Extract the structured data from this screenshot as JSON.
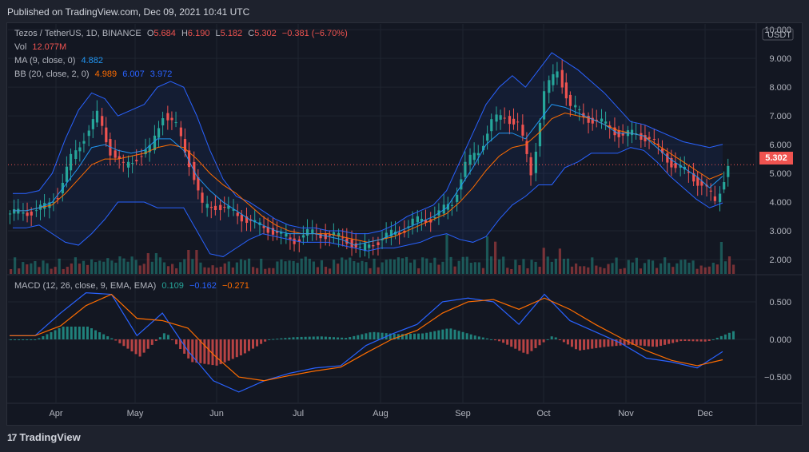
{
  "header": {
    "published": "Published on TradingView.com, Dec 09, 2021 10:41 UTC"
  },
  "legend": {
    "symbol": "Tezos / TetherUS, 1D, BINANCE",
    "ohlc": {
      "o_label": "O",
      "o": "5.684",
      "h_label": "H",
      "h": "6.190",
      "l_label": "L",
      "l": "5.182",
      "c_label": "C",
      "c": "5.302",
      "change": "−0.381 (−6.70%)"
    },
    "vol_label": "Vol",
    "vol": "12.077M",
    "ma_label": "MA (9, close, 0)",
    "ma": "4.882",
    "bb_label": "BB (20, close, 2, 0)",
    "bb_basis": "4.989",
    "bb_upper": "6.007",
    "bb_lower": "3.972",
    "macd_label": "MACD (12, 26, close, 9, EMA, EMA)",
    "macd_hist": "0.109",
    "macd_line": "−0.162",
    "macd_signal": "−0.271"
  },
  "price_axis": {
    "currency": "USDT",
    "ticks": [
      "10.000",
      "9.000",
      "8.000",
      "7.000",
      "6.000",
      "5.000",
      "4.000",
      "3.000",
      "2.000"
    ],
    "last_price": "5.302"
  },
  "macd_axis": {
    "ticks": [
      "0.500",
      "0.000",
      "−0.500"
    ]
  },
  "time_axis": {
    "ticks": [
      "Apr",
      "May",
      "Jun",
      "Jul",
      "Aug",
      "Sep",
      "Oct",
      "Nov",
      "Dec"
    ]
  },
  "footer": {
    "brand": "TradingView",
    "logo": "17"
  },
  "colors": {
    "up": "#26a69a",
    "down": "#ef5350",
    "ma": "#2196f3",
    "bb": "#2962ff",
    "macd": "#2962ff",
    "signal": "#ff6d00",
    "bb_basis": "#ff6d00"
  },
  "chart_data": [
    {
      "type": "candlestick",
      "title": "Tezos / TetherUS, 1D, BINANCE",
      "ylim": [
        1.5,
        10.2
      ],
      "x": [
        "Mar 20",
        "Mar 25",
        "Mar 30",
        "Apr 1",
        "Apr 5",
        "Apr 10",
        "Apr 15",
        "Apr 20",
        "Apr 25",
        "Apr 30",
        "May 1",
        "May 5",
        "May 10",
        "May 15",
        "May 20",
        "May 25",
        "May 31",
        "Jun 5",
        "Jun 10",
        "Jun 15",
        "Jun 20",
        "Jun 25",
        "Jun 30",
        "Jul 5",
        "Jul 10",
        "Jul 15",
        "Jul 20",
        "Jul 25",
        "Jul 31",
        "Aug 5",
        "Aug 10",
        "Aug 15",
        "Aug 20",
        "Aug 25",
        "Aug 31",
        "Sep 5",
        "Sep 10",
        "Sep 15",
        "Sep 20",
        "Sep 25",
        "Sep 30",
        "Oct 5",
        "Oct 10",
        "Oct 15",
        "Oct 20",
        "Oct 25",
        "Oct 31",
        "Nov 5",
        "Nov 10",
        "Nov 15",
        "Nov 20",
        "Nov 25",
        "Nov 30",
        "Dec 4",
        "Dec 9"
      ],
      "close": [
        3.6,
        3.7,
        3.8,
        4.3,
        5.5,
        6.3,
        7.0,
        5.8,
        5.2,
        5.6,
        5.8,
        7.1,
        6.6,
        5.4,
        3.8,
        3.9,
        3.7,
        3.5,
        3.2,
        3.1,
        2.8,
        2.7,
        2.9,
        2.9,
        2.8,
        2.7,
        2.3,
        2.6,
        2.8,
        3.0,
        3.3,
        3.4,
        3.6,
        4.0,
        5.3,
        5.8,
        6.8,
        7.0,
        6.7,
        5.0,
        7.8,
        8.6,
        7.3,
        7.0,
        6.8,
        6.6,
        6.3,
        6.4,
        6.2,
        5.7,
        5.2,
        5.0,
        4.6,
        4.0,
        5.3
      ],
      "series": [
        {
          "name": "MA (9, close, 0)",
          "values": [
            3.7,
            3.7,
            3.8,
            4.0,
            4.6,
            5.2,
            5.9,
            6.0,
            5.8,
            5.7,
            5.8,
            6.2,
            6.2,
            5.8,
            4.9,
            4.4,
            4.0,
            3.7,
            3.4,
            3.2,
            3.0,
            2.9,
            2.9,
            2.9,
            2.8,
            2.7,
            2.5,
            2.6,
            2.7,
            2.9,
            3.1,
            3.3,
            3.5,
            3.8,
            4.5,
            5.2,
            6.0,
            6.4,
            6.4,
            6.2,
            6.8,
            7.4,
            7.3,
            7.1,
            6.9,
            6.7,
            6.4,
            6.4,
            6.3,
            5.9,
            5.5,
            5.2,
            4.9,
            4.5,
            4.9
          ]
        },
        {
          "name": "BB (20, close, 2, 0) basis",
          "values": [
            3.7,
            3.7,
            3.8,
            3.9,
            4.3,
            4.8,
            5.3,
            5.5,
            5.5,
            5.6,
            5.7,
            5.9,
            6.0,
            5.9,
            5.5,
            5.0,
            4.6,
            4.3,
            3.9,
            3.5,
            3.2,
            3.0,
            2.9,
            2.9,
            2.9,
            2.8,
            2.7,
            2.6,
            2.7,
            2.8,
            3.0,
            3.2,
            3.4,
            3.6,
            4.0,
            4.5,
            5.1,
            5.6,
            5.9,
            6.0,
            6.4,
            6.9,
            7.1,
            7.0,
            6.9,
            6.7,
            6.5,
            6.4,
            6.3,
            6.0,
            5.7,
            5.4,
            5.1,
            4.8,
            4.99
          ]
        },
        {
          "name": "BB upper",
          "values": [
            4.3,
            4.3,
            4.4,
            5.0,
            6.2,
            7.2,
            7.8,
            7.6,
            7.0,
            7.2,
            7.4,
            8.0,
            8.2,
            8.0,
            7.0,
            5.8,
            4.8,
            4.2,
            4.0,
            3.7,
            3.4,
            3.2,
            3.1,
            3.1,
            3.0,
            3.0,
            2.9,
            2.9,
            3.0,
            3.2,
            3.5,
            3.7,
            3.9,
            4.4,
            5.4,
            6.4,
            7.4,
            8.0,
            8.4,
            8.0,
            8.6,
            9.2,
            8.9,
            8.6,
            8.2,
            7.8,
            7.3,
            6.8,
            6.7,
            6.5,
            6.3,
            6.1,
            6.0,
            5.9,
            6.01
          ]
        },
        {
          "name": "BB lower",
          "values": [
            3.1,
            3.1,
            3.2,
            2.9,
            2.6,
            2.5,
            2.9,
            3.4,
            4.0,
            4.0,
            4.0,
            3.8,
            3.8,
            3.8,
            3.0,
            2.2,
            2.1,
            2.4,
            2.7,
            2.9,
            2.8,
            2.7,
            2.6,
            2.6,
            2.6,
            2.5,
            2.4,
            2.3,
            2.4,
            2.4,
            2.5,
            2.6,
            2.8,
            2.9,
            2.7,
            2.6,
            2.8,
            3.4,
            3.9,
            4.2,
            4.6,
            4.6,
            5.2,
            5.4,
            5.7,
            5.7,
            5.7,
            5.9,
            5.8,
            5.4,
            4.9,
            4.5,
            4.1,
            3.8,
            3.97
          ]
        }
      ]
    },
    {
      "type": "bar",
      "title": "Vol",
      "x": [
        "Mar 20",
        "Apr 15",
        "May 10",
        "May 20",
        "Jul 20",
        "Sep 5",
        "Sep 15",
        "Sep 30",
        "Oct 5",
        "Nov 30",
        "Dec 9"
      ],
      "values": [
        0.3,
        0.5,
        0.6,
        0.6,
        0.3,
        0.7,
        0.9,
        0.7,
        0.8,
        0.5,
        1.0
      ]
    },
    {
      "type": "line",
      "title": "MACD (12, 26, close, 9, EMA, EMA)",
      "ylim": [
        -0.85,
        0.85
      ],
      "x": [
        "Mar 20",
        "Mar 30",
        "Apr 10",
        "Apr 20",
        "Apr 25",
        "May 1",
        "May 10",
        "May 20",
        "May 25",
        "Jun 1",
        "Jun 10",
        "Jun 20",
        "Jul 1",
        "Jul 15",
        "Aug 1",
        "Aug 15",
        "Sep 1",
        "Sep 5",
        "Sep 15",
        "Sep 20",
        "Sep 25",
        "Oct 1",
        "Oct 10",
        "Oct 20",
        "Nov 1",
        "Nov 15",
        "Nov 25",
        "Dec 1",
        "Dec 9"
      ],
      "series": [
        {
          "name": "MACD",
          "values": [
            0.05,
            0.05,
            0.35,
            0.62,
            0.6,
            0.05,
            0.35,
            -0.15,
            -0.55,
            -0.7,
            -0.55,
            -0.45,
            -0.38,
            -0.35,
            -0.08,
            0.07,
            0.2,
            0.5,
            0.55,
            0.5,
            0.2,
            0.6,
            0.25,
            0.1,
            -0.05,
            -0.25,
            -0.3,
            -0.38,
            -0.162
          ]
        },
        {
          "name": "Signal",
          "values": [
            0.05,
            0.05,
            0.18,
            0.45,
            0.6,
            0.28,
            0.25,
            0.15,
            -0.2,
            -0.5,
            -0.55,
            -0.48,
            -0.42,
            -0.37,
            -0.18,
            0.0,
            0.12,
            0.35,
            0.5,
            0.53,
            0.4,
            0.55,
            0.4,
            0.2,
            0.02,
            -0.15,
            -0.28,
            -0.35,
            -0.271
          ]
        },
        {
          "name": "Histogram",
          "values": [
            0.0,
            0.0,
            0.17,
            0.17,
            0.0,
            -0.23,
            0.1,
            -0.3,
            -0.35,
            -0.2,
            0.0,
            0.03,
            0.04,
            0.02,
            0.1,
            0.07,
            0.08,
            0.15,
            0.05,
            -0.03,
            -0.2,
            0.05,
            -0.15,
            -0.1,
            -0.07,
            -0.1,
            -0.02,
            -0.03,
            0.109
          ]
        }
      ]
    }
  ]
}
